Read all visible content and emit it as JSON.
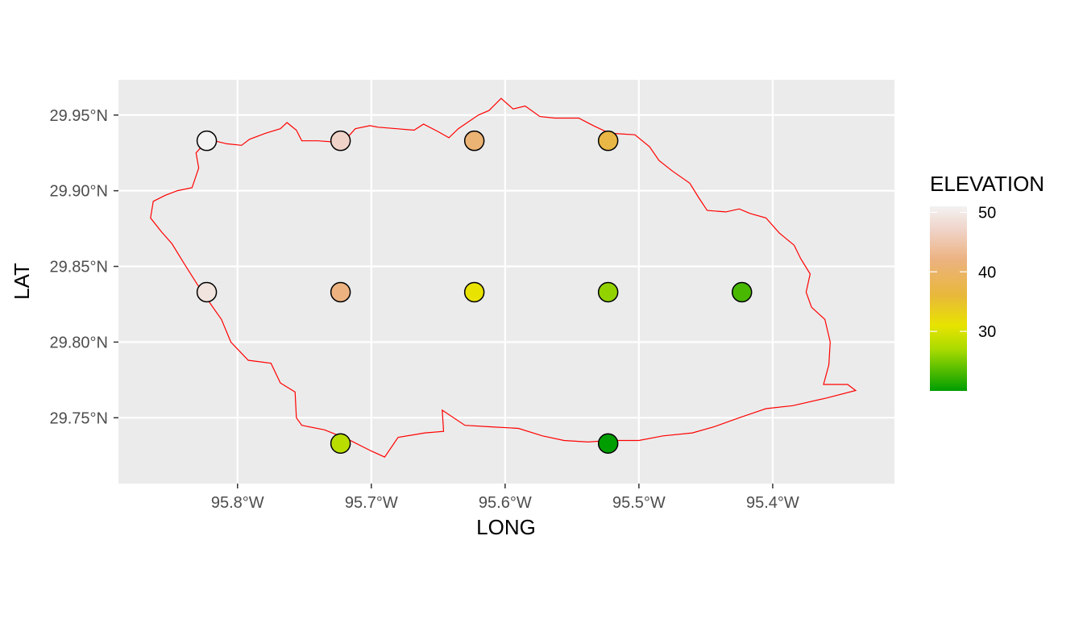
{
  "chart_data": {
    "type": "scatter",
    "xlabel": "LONG",
    "ylabel": "LAT",
    "xlim": [
      -95.889,
      -95.309
    ],
    "ylim": [
      29.7065,
      29.9733
    ],
    "x_ticks": [
      {
        "value": -95.8,
        "label": "95.8°W"
      },
      {
        "value": -95.7,
        "label": "95.7°W"
      },
      {
        "value": -95.6,
        "label": "95.6°W"
      },
      {
        "value": -95.5,
        "label": "95.5°W"
      },
      {
        "value": -95.4,
        "label": "95.4°W"
      }
    ],
    "y_ticks": [
      {
        "value": 29.75,
        "label": "29.75°N"
      },
      {
        "value": 29.8,
        "label": "29.80°N"
      },
      {
        "value": 29.85,
        "label": "29.85°N"
      },
      {
        "value": 29.9,
        "label": "29.90°N"
      },
      {
        "value": 29.95,
        "label": "29.95°N"
      }
    ],
    "grid": true,
    "panel_background": "#ebebeb",
    "grid_color": "#ffffff",
    "points": [
      {
        "long": -95.823,
        "lat": 29.933,
        "elevation": 51
      },
      {
        "long": -95.723,
        "lat": 29.933,
        "elevation": 47
      },
      {
        "long": -95.623,
        "lat": 29.933,
        "elevation": 41
      },
      {
        "long": -95.523,
        "lat": 29.933,
        "elevation": 37
      },
      {
        "long": -95.823,
        "lat": 29.833,
        "elevation": 49
      },
      {
        "long": -95.723,
        "lat": 29.833,
        "elevation": 42
      },
      {
        "long": -95.623,
        "lat": 29.833,
        "elevation": 31
      },
      {
        "long": -95.523,
        "lat": 29.833,
        "elevation": 26
      },
      {
        "long": -95.423,
        "lat": 29.833,
        "elevation": 23
      },
      {
        "long": -95.723,
        "lat": 29.733,
        "elevation": 28
      },
      {
        "long": -95.523,
        "lat": 29.733,
        "elevation": 20
      }
    ],
    "boundary": {
      "color": "#ff0000",
      "coords": [
        [
          -95.822,
          29.934
        ],
        [
          -95.808,
          29.931
        ],
        [
          -95.797,
          29.93
        ],
        [
          -95.791,
          29.934
        ],
        [
          -95.779,
          29.938
        ],
        [
          -95.768,
          29.941
        ],
        [
          -95.763,
          29.945
        ],
        [
          -95.756,
          29.94
        ],
        [
          -95.752,
          29.933
        ],
        [
          -95.74,
          29.933
        ],
        [
          -95.724,
          29.932
        ],
        [
          -95.718,
          29.935
        ],
        [
          -95.712,
          29.941
        ],
        [
          -95.701,
          29.943
        ],
        [
          -95.695,
          29.942
        ],
        [
          -95.681,
          29.941
        ],
        [
          -95.668,
          29.94
        ],
        [
          -95.661,
          29.944
        ],
        [
          -95.65,
          29.939
        ],
        [
          -95.642,
          29.935
        ],
        [
          -95.635,
          29.941
        ],
        [
          -95.62,
          29.95
        ],
        [
          -95.612,
          29.953
        ],
        [
          -95.603,
          29.961
        ],
        [
          -95.594,
          29.954
        ],
        [
          -95.585,
          29.956
        ],
        [
          -95.574,
          29.949
        ],
        [
          -95.563,
          29.948
        ],
        [
          -95.545,
          29.948
        ],
        [
          -95.534,
          29.943
        ],
        [
          -95.522,
          29.938
        ],
        [
          -95.503,
          29.937
        ],
        [
          -95.492,
          29.929
        ],
        [
          -95.485,
          29.92
        ],
        [
          -95.475,
          29.913
        ],
        [
          -95.462,
          29.905
        ],
        [
          -95.455,
          29.895
        ],
        [
          -95.449,
          29.887
        ],
        [
          -95.435,
          29.886
        ],
        [
          -95.425,
          29.888
        ],
        [
          -95.417,
          29.885
        ],
        [
          -95.405,
          29.882
        ],
        [
          -95.395,
          29.872
        ],
        [
          -95.384,
          29.864
        ],
        [
          -95.379,
          29.855
        ],
        [
          -95.372,
          29.845
        ],
        [
          -95.375,
          29.833
        ],
        [
          -95.371,
          29.823
        ],
        [
          -95.361,
          29.815
        ],
        [
          -95.357,
          29.8
        ],
        [
          -95.358,
          29.785
        ],
        [
          -95.362,
          29.772
        ],
        [
          -95.344,
          29.772
        ],
        [
          -95.338,
          29.768
        ],
        [
          -95.36,
          29.763
        ],
        [
          -95.385,
          29.758
        ],
        [
          -95.405,
          29.756
        ],
        [
          -95.425,
          29.75
        ],
        [
          -95.444,
          29.744
        ],
        [
          -95.46,
          29.74
        ],
        [
          -95.482,
          29.738
        ],
        [
          -95.5,
          29.735
        ],
        [
          -95.522,
          29.735
        ],
        [
          -95.538,
          29.734
        ],
        [
          -95.556,
          29.735
        ],
        [
          -95.572,
          29.738
        ],
        [
          -95.59,
          29.743
        ],
        [
          -95.61,
          29.744
        ],
        [
          -95.63,
          29.745
        ],
        [
          -95.647,
          29.755
        ],
        [
          -95.646,
          29.741
        ],
        [
          -95.66,
          29.74
        ],
        [
          -95.68,
          29.737
        ],
        [
          -95.69,
          29.724
        ],
        [
          -95.7,
          29.728
        ],
        [
          -95.718,
          29.736
        ],
        [
          -95.735,
          29.742
        ],
        [
          -95.752,
          29.745
        ],
        [
          -95.756,
          29.75
        ],
        [
          -95.757,
          29.767
        ],
        [
          -95.768,
          29.773
        ],
        [
          -95.775,
          29.786
        ],
        [
          -95.792,
          29.788
        ],
        [
          -95.805,
          29.8
        ],
        [
          -95.812,
          29.815
        ],
        [
          -95.82,
          29.825
        ],
        [
          -95.83,
          29.838
        ],
        [
          -95.84,
          29.852
        ],
        [
          -95.849,
          29.865
        ],
        [
          -95.857,
          29.873
        ],
        [
          -95.865,
          29.882
        ],
        [
          -95.863,
          29.893
        ],
        [
          -95.854,
          29.897
        ],
        [
          -95.845,
          29.9
        ],
        [
          -95.834,
          29.902
        ],
        [
          -95.829,
          29.915
        ],
        [
          -95.831,
          29.925
        ],
        [
          -95.822,
          29.934
        ]
      ]
    },
    "legend": {
      "title": "ELEVATION",
      "position": "right",
      "ticks": [
        {
          "value": 50,
          "label": "50"
        },
        {
          "value": 40,
          "label": "40"
        },
        {
          "value": 30,
          "label": "30"
        }
      ],
      "range": [
        20,
        51
      ],
      "gradient": [
        {
          "value": 20,
          "color": "#009e00"
        },
        {
          "value": 27,
          "color": "#aadb00"
        },
        {
          "value": 31,
          "color": "#e8e300"
        },
        {
          "value": 36,
          "color": "#e8b83a"
        },
        {
          "value": 42,
          "color": "#ecb280"
        },
        {
          "value": 47,
          "color": "#f0d3c8"
        },
        {
          "value": 51,
          "color": "#f2f2f2"
        }
      ]
    }
  }
}
